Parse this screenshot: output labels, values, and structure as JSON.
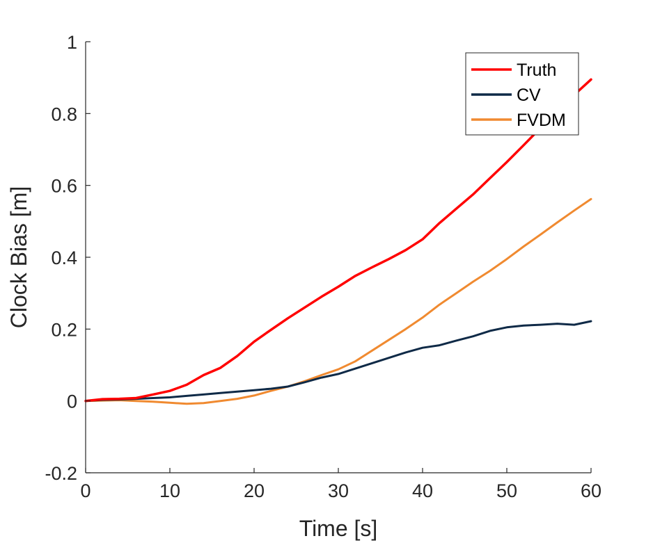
{
  "chart_data": {
    "type": "line",
    "xlabel": "Time [s]",
    "ylabel": "Clock Bias [m]",
    "xlim": [
      0,
      60
    ],
    "ylim": [
      -0.2,
      1
    ],
    "xticks": [
      0,
      10,
      20,
      30,
      40,
      50,
      60
    ],
    "xtick_labels": [
      "0",
      "10",
      "20",
      "30",
      "40",
      "50",
      "60"
    ],
    "yticks": [
      -0.2,
      0,
      0.2,
      0.4,
      0.6,
      0.8,
      1
    ],
    "ytick_labels": [
      "-0.2",
      "0",
      "0.2",
      "0.4",
      "0.6",
      "0.8",
      "1"
    ],
    "grid": false,
    "legend_position": "top-right",
    "series": [
      {
        "name": "Truth",
        "color": "#ff0000",
        "x": [
          0,
          2,
          4,
          6,
          8,
          10,
          12,
          14,
          16,
          18,
          20,
          22,
          24,
          26,
          28,
          30,
          32,
          34,
          36,
          38,
          40,
          42,
          44,
          46,
          48,
          50,
          52,
          54,
          56,
          58,
          60
        ],
        "y": [
          0,
          0.005,
          0.006,
          0.008,
          0.018,
          0.028,
          0.045,
          0.072,
          0.092,
          0.125,
          0.165,
          0.198,
          0.23,
          0.26,
          0.29,
          0.318,
          0.348,
          0.372,
          0.395,
          0.42,
          0.45,
          0.495,
          0.535,
          0.575,
          0.62,
          0.665,
          0.712,
          0.76,
          0.805,
          0.852,
          0.895
        ]
      },
      {
        "name": "CV",
        "color": "#0f2a47",
        "x": [
          0,
          2,
          4,
          6,
          8,
          10,
          12,
          14,
          16,
          18,
          20,
          22,
          24,
          26,
          28,
          30,
          32,
          34,
          36,
          38,
          40,
          42,
          44,
          46,
          48,
          50,
          52,
          54,
          56,
          58,
          60
        ],
        "y": [
          0,
          0.003,
          0.004,
          0.006,
          0.008,
          0.01,
          0.014,
          0.018,
          0.022,
          0.026,
          0.03,
          0.034,
          0.04,
          0.052,
          0.065,
          0.075,
          0.09,
          0.105,
          0.12,
          0.135,
          0.148,
          0.155,
          0.168,
          0.18,
          0.195,
          0.205,
          0.21,
          0.212,
          0.215,
          0.212,
          0.222
        ]
      },
      {
        "name": "FVDM",
        "color": "#f08a30",
        "x": [
          0,
          2,
          4,
          6,
          8,
          10,
          12,
          14,
          16,
          18,
          20,
          22,
          24,
          26,
          28,
          30,
          32,
          34,
          36,
          38,
          40,
          42,
          44,
          46,
          48,
          50,
          52,
          54,
          56,
          58,
          60
        ],
        "y": [
          0,
          0.001,
          0.002,
          0.0,
          -0.002,
          -0.005,
          -0.008,
          -0.006,
          0.0,
          0.006,
          0.015,
          0.028,
          0.04,
          0.055,
          0.072,
          0.088,
          0.11,
          0.14,
          0.17,
          0.2,
          0.232,
          0.268,
          0.3,
          0.332,
          0.362,
          0.395,
          0.43,
          0.463,
          0.497,
          0.53,
          0.562
        ]
      }
    ]
  }
}
